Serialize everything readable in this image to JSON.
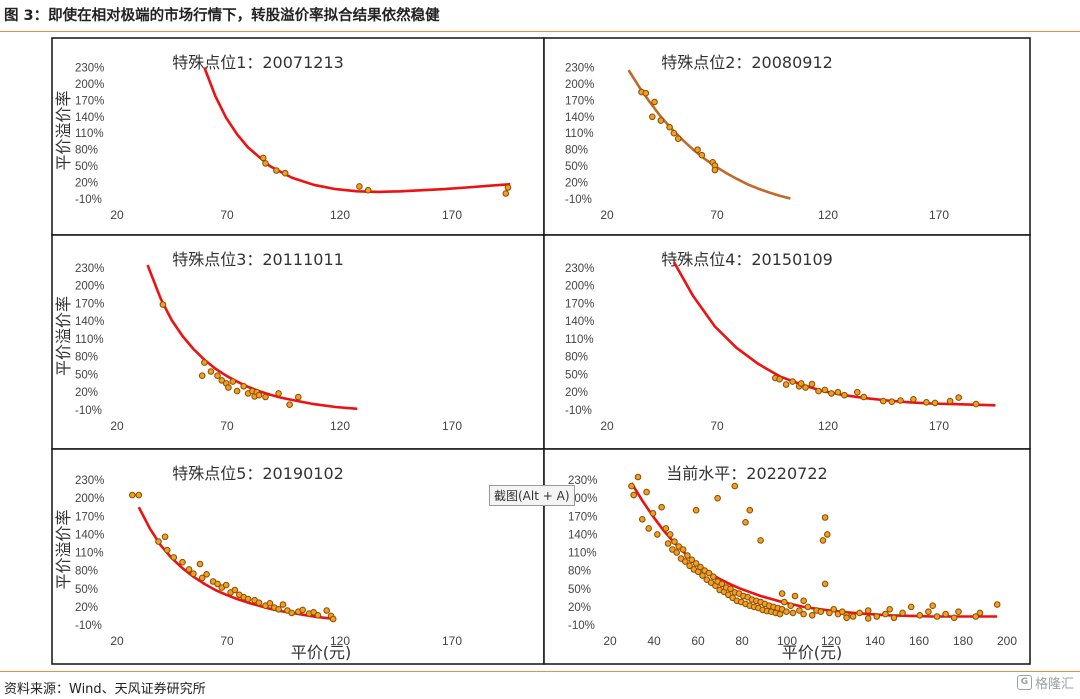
{
  "header": {
    "title": "图 3：即使在相对极端的市场行情下，转股溢价率拟合结果依然稳健"
  },
  "footer": {
    "source": "资料来源：Wind、天风证券研究所"
  },
  "watermark": {
    "text": "格隆汇",
    "icon": "glh-logo-icon"
  },
  "tooltip": {
    "text": "截图(Alt + A)"
  },
  "colors": {
    "rule": "#e8913a",
    "curve_red": "#ee1111",
    "curve_brown": "#c0692a",
    "point_fill": "#f0a020",
    "point_stroke": "#8b4a00"
  },
  "chart_data": [
    {
      "type": "scatter",
      "title": "特殊点位1：20071213",
      "ylabel": "平价溢价率",
      "xlabel": "",
      "xlim": [
        20,
        210
      ],
      "ylim": [
        -10,
        240
      ],
      "xticks": [
        "20",
        "70",
        "120",
        "170"
      ],
      "yticks": [
        "230%",
        "200%",
        "170%",
        "140%",
        "110%",
        "80%",
        "50%",
        "20%",
        "-10%"
      ],
      "grid": false,
      "fit_curve": {
        "color": "#ee1111",
        "x": [
          60,
          65,
          70,
          75,
          80,
          90,
          100,
          110,
          120,
          130,
          140,
          150,
          160,
          170,
          180,
          190,
          200
        ],
        "y": [
          230,
          178,
          138,
          108,
          84,
          50,
          29,
          16,
          8,
          4,
          3,
          4,
          6,
          8,
          11,
          14,
          17
        ]
      },
      "points": [
        [
          87,
          65
        ],
        [
          88,
          55
        ],
        [
          93,
          42
        ],
        [
          97,
          37
        ],
        [
          131,
          13
        ],
        [
          135,
          6
        ],
        [
          198,
          0
        ],
        [
          199,
          11
        ]
      ]
    },
    {
      "type": "scatter",
      "title": "特殊点位2：20080912",
      "ylabel": "",
      "xlabel": "",
      "xlim": [
        20,
        210
      ],
      "ylim": [
        -10,
        240
      ],
      "xticks": [
        "20",
        "70",
        "120",
        "170"
      ],
      "yticks": [
        "230%",
        "200%",
        "170%",
        "140%",
        "110%",
        "80%",
        "50%",
        "20%",
        "-10%"
      ],
      "grid": false,
      "fit_curve": {
        "color": "#c0692a",
        "x": [
          30,
          35,
          40,
          45,
          50,
          55,
          60,
          65,
          70,
          75,
          80,
          85,
          90,
          95,
          100,
          105
        ],
        "y": [
          225,
          194,
          166,
          140,
          118,
          98,
          80,
          64,
          50,
          38,
          27,
          17,
          9,
          2,
          -4,
          -9
        ]
      },
      "points": [
        [
          36,
          185
        ],
        [
          38,
          183
        ],
        [
          41,
          140
        ],
        [
          42,
          167
        ],
        [
          45,
          133
        ],
        [
          49,
          121
        ],
        [
          51,
          110
        ],
        [
          53,
          100
        ],
        [
          62,
          80
        ],
        [
          64,
          70
        ],
        [
          69,
          57
        ],
        [
          70,
          51
        ],
        [
          70,
          43
        ]
      ]
    },
    {
      "type": "scatter",
      "title": "特殊点位3：20111011",
      "ylabel": "平价溢价率",
      "xlabel": "",
      "xlim": [
        20,
        210
      ],
      "ylim": [
        -10,
        240
      ],
      "xticks": [
        "20",
        "70",
        "120",
        "170"
      ],
      "yticks": [
        "230%",
        "200%",
        "170%",
        "140%",
        "110%",
        "80%",
        "50%",
        "20%",
        "-10%"
      ],
      "grid": false,
      "fit_curve": {
        "color": "#ee1111",
        "x": [
          34,
          40,
          45,
          50,
          55,
          60,
          65,
          70,
          75,
          80,
          85,
          90,
          95,
          100,
          110,
          120,
          130
        ],
        "y": [
          235,
          178,
          142,
          115,
          93,
          75,
          60,
          48,
          38,
          29,
          22,
          16,
          11,
          7,
          0,
          -5,
          -8
        ]
      },
      "points": [
        [
          41,
          168
        ],
        [
          59,
          48
        ],
        [
          60,
          70
        ],
        [
          63,
          55
        ],
        [
          66,
          48
        ],
        [
          68,
          40
        ],
        [
          70,
          35
        ],
        [
          71,
          28
        ],
        [
          73,
          38
        ],
        [
          75,
          22
        ],
        [
          78,
          30
        ],
        [
          80,
          18
        ],
        [
          82,
          22
        ],
        [
          83,
          13
        ],
        [
          84,
          20
        ],
        [
          85,
          15
        ],
        [
          88,
          12
        ],
        [
          94,
          18
        ],
        [
          99,
          -1
        ],
        [
          103,
          12
        ]
      ]
    },
    {
      "type": "scatter",
      "title": "特殊点位4：20150109",
      "ylabel": "",
      "xlabel": "",
      "xlim": [
        20,
        210
      ],
      "ylim": [
        -10,
        240
      ],
      "xticks": [
        "20",
        "70",
        "120",
        "170"
      ],
      "yticks": [
        "230%",
        "200%",
        "170%",
        "140%",
        "110%",
        "80%",
        "50%",
        "20%",
        "-10%"
      ],
      "grid": false,
      "fit_curve": {
        "color": "#ee1111",
        "x": [
          51,
          60,
          70,
          80,
          90,
          100,
          110,
          120,
          130,
          140,
          150,
          160,
          170,
          180,
          190,
          200
        ],
        "y": [
          240,
          182,
          131,
          95,
          68,
          47,
          33,
          22,
          15,
          10,
          6,
          3,
          1,
          0,
          -1,
          -2
        ]
      },
      "points": [
        [
          98,
          44
        ],
        [
          100,
          42
        ],
        [
          103,
          33
        ],
        [
          106,
          38
        ],
        [
          109,
          30
        ],
        [
          110,
          35
        ],
        [
          112,
          28
        ],
        [
          115,
          34
        ],
        [
          118,
          22
        ],
        [
          121,
          24
        ],
        [
          124,
          18
        ],
        [
          127,
          20
        ],
        [
          130,
          15
        ],
        [
          136,
          20
        ],
        [
          139,
          12
        ],
        [
          148,
          5
        ],
        [
          152,
          4
        ],
        [
          156,
          6
        ],
        [
          162,
          8
        ],
        [
          168,
          3
        ],
        [
          172,
          2
        ],
        [
          179,
          5
        ],
        [
          183,
          11
        ],
        [
          191,
          0
        ]
      ]
    },
    {
      "type": "scatter",
      "title": "特殊点位5：20190102",
      "ylabel": "平价溢价率",
      "xlabel": "平价(元)",
      "xlim": [
        20,
        210
      ],
      "ylim": [
        -10,
        240
      ],
      "xticks": [
        "20",
        "70",
        "120",
        "170"
      ],
      "yticks": [
        "230%",
        "200%",
        "170%",
        "140%",
        "110%",
        "80%",
        "50%",
        "20%",
        "-10%"
      ],
      "grid": false,
      "fit_curve": {
        "color": "#ee1111",
        "x": [
          30,
          35,
          40,
          45,
          50,
          55,
          60,
          65,
          70,
          75,
          80,
          85,
          90,
          95,
          100,
          105,
          110,
          115,
          120
        ],
        "y": [
          185,
          150,
          122,
          101,
          84,
          70,
          58,
          48,
          40,
          33,
          27,
          22,
          17,
          13,
          10,
          7,
          4,
          2,
          0
        ]
      },
      "points": [
        [
          27,
          205
        ],
        [
          30,
          205
        ],
        [
          39,
          128
        ],
        [
          42,
          136
        ],
        [
          43,
          114
        ],
        [
          46,
          102
        ],
        [
          50,
          94
        ],
        [
          53,
          82
        ],
        [
          55,
          75
        ],
        [
          58,
          91
        ],
        [
          59,
          68
        ],
        [
          61,
          74
        ],
        [
          64,
          62
        ],
        [
          66,
          58
        ],
        [
          68,
          52
        ],
        [
          70,
          56
        ],
        [
          72,
          44
        ],
        [
          74,
          48
        ],
        [
          76,
          40
        ],
        [
          78,
          36
        ],
        [
          80,
          33
        ],
        [
          83,
          31
        ],
        [
          85,
          27
        ],
        [
          88,
          22
        ],
        [
          90,
          26
        ],
        [
          92,
          19
        ],
        [
          94,
          16
        ],
        [
          96,
          24
        ],
        [
          98,
          14
        ],
        [
          100,
          10
        ],
        [
          103,
          12
        ],
        [
          105,
          15
        ],
        [
          108,
          9
        ],
        [
          110,
          11
        ],
        [
          112,
          6
        ],
        [
          116,
          14
        ],
        [
          118,
          5
        ],
        [
          119,
          0
        ]
      ]
    },
    {
      "type": "scatter",
      "title": "当前水平：20220722",
      "ylabel": "",
      "xlabel": "平价(元)",
      "xlim": [
        20,
        205
      ],
      "ylim": [
        -10,
        240
      ],
      "xticks": [
        "20",
        "40",
        "60",
        "80",
        "100",
        "120",
        "140",
        "160",
        "180",
        "200"
      ],
      "yticks": [
        "230%",
        "200%",
        "170%",
        "140%",
        "110%",
        "80%",
        "50%",
        "20%",
        "-10%"
      ],
      "grid": false,
      "fit_curve": {
        "color": "#ee1111",
        "x": [
          30,
          35,
          40,
          45,
          50,
          55,
          60,
          65,
          70,
          75,
          80,
          90,
          100,
          110,
          120,
          130,
          140,
          150,
          160,
          170,
          180,
          190,
          200
        ],
        "y": [
          225,
          196,
          170,
          146,
          126,
          108,
          92,
          79,
          68,
          59,
          51,
          38,
          28,
          20,
          15,
          11,
          8,
          6,
          5,
          4,
          4,
          4,
          4
        ]
      },
      "points": [
        [
          30,
          220
        ],
        [
          31,
          205
        ],
        [
          33,
          235
        ],
        [
          35,
          165
        ],
        [
          37,
          210
        ],
        [
          38,
          150
        ],
        [
          40,
          175
        ],
        [
          42,
          140
        ],
        [
          44,
          185
        ],
        [
          46,
          150
        ],
        [
          47,
          125
        ],
        [
          48,
          140
        ],
        [
          49,
          115
        ],
        [
          50,
          128
        ],
        [
          51,
          110
        ],
        [
          52,
          120
        ],
        [
          53,
          100
        ],
        [
          54,
          115
        ],
        [
          55,
          95
        ],
        [
          56,
          105
        ],
        [
          57,
          88
        ],
        [
          58,
          98
        ],
        [
          59,
          82
        ],
        [
          60,
          92
        ],
        [
          61,
          78
        ],
        [
          62,
          86
        ],
        [
          63,
          72
        ],
        [
          64,
          80
        ],
        [
          65,
          65
        ],
        [
          66,
          76
        ],
        [
          67,
          60
        ],
        [
          68,
          70
        ],
        [
          69,
          55
        ],
        [
          70,
          62
        ],
        [
          71,
          48
        ],
        [
          72,
          58
        ],
        [
          73,
          45
        ],
        [
          74,
          52
        ],
        [
          75,
          40
        ],
        [
          76,
          50
        ],
        [
          77,
          35
        ],
        [
          78,
          44
        ],
        [
          79,
          30
        ],
        [
          80,
          42
        ],
        [
          81,
          28
        ],
        [
          82,
          38
        ],
        [
          83,
          25
        ],
        [
          84,
          36
        ],
        [
          85,
          22
        ],
        [
          86,
          32
        ],
        [
          87,
          20
        ],
        [
          88,
          30
        ],
        [
          89,
          18
        ],
        [
          90,
          28
        ],
        [
          91,
          15
        ],
        [
          92,
          25
        ],
        [
          93,
          13
        ],
        [
          94,
          22
        ],
        [
          95,
          12
        ],
        [
          96,
          20
        ],
        [
          97,
          10
        ],
        [
          98,
          18
        ],
        [
          99,
          8
        ],
        [
          100,
          16
        ],
        [
          101,
          28
        ],
        [
          102,
          12
        ],
        [
          104,
          22
        ],
        [
          105,
          10
        ],
        [
          106,
          38
        ],
        [
          108,
          14
        ],
        [
          110,
          8
        ],
        [
          112,
          20
        ],
        [
          114,
          6
        ],
        [
          116,
          14
        ],
        [
          118,
          12
        ],
        [
          119,
          130
        ],
        [
          120,
          168
        ],
        [
          121,
          140
        ],
        [
          122,
          10
        ],
        [
          124,
          16
        ],
        [
          126,
          8
        ],
        [
          128,
          12
        ],
        [
          130,
          6
        ],
        [
          133,
          4
        ],
        [
          136,
          10
        ],
        [
          140,
          14
        ],
        [
          144,
          4
        ],
        [
          148,
          8
        ],
        [
          152,
          2
        ],
        [
          156,
          10
        ],
        [
          160,
          20
        ],
        [
          164,
          6
        ],
        [
          168,
          12
        ],
        [
          172,
          4
        ],
        [
          176,
          8
        ],
        [
          180,
          2
        ],
        [
          190,
          4
        ],
        [
          192,
          10
        ],
        [
          200,
          24
        ],
        [
          60,
          180
        ],
        [
          70,
          200
        ],
        [
          78,
          220
        ],
        [
          85,
          180
        ],
        [
          90,
          130
        ],
        [
          83,
          160
        ],
        [
          100,
          42
        ],
        [
          110,
          30
        ],
        [
          120,
          58
        ],
        [
          130,
          2
        ],
        [
          140,
          1
        ],
        [
          150,
          16
        ],
        [
          170,
          22
        ],
        [
          182,
          12
        ]
      ]
    }
  ]
}
